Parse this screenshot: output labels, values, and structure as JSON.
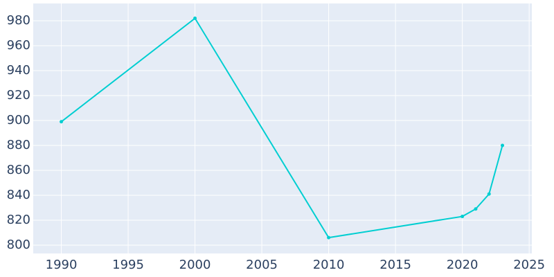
{
  "chart_data": {
    "type": "line",
    "x": [
      1990,
      2000,
      2010,
      2020,
      2021,
      2022,
      2023
    ],
    "series": [
      {
        "color": "#00ced1",
        "values": [
          899,
          982,
          806,
          823,
          829,
          841,
          880
        ]
      }
    ],
    "xlim": [
      1987.9,
      2025.2
    ],
    "xticks": [
      1990,
      1995,
      2000,
      2005,
      2010,
      2015,
      2020,
      2025
    ],
    "ylim": [
      793.3,
      993.9
    ],
    "yticks": [
      800,
      820,
      840,
      860,
      880,
      900,
      920,
      940,
      960,
      980
    ],
    "grid": true
  }
}
